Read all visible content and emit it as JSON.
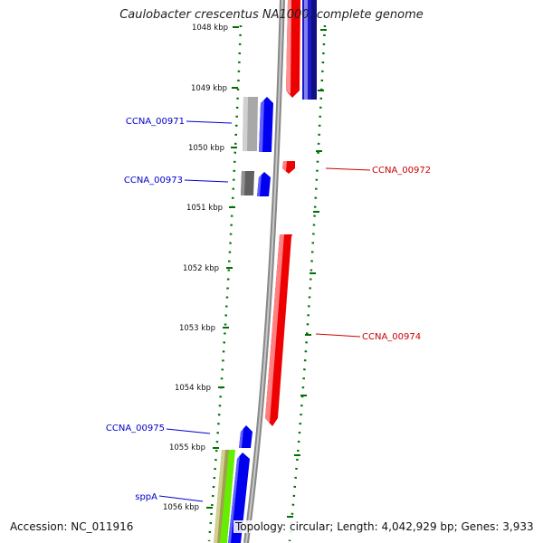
{
  "title": "Caulobacter crescentus NA1000, complete genome",
  "accession": "Accession: NC_011916",
  "summary": "Topology: circular; Length: 4,042,929 bp; Genes: 3,933",
  "colors": {
    "forward_gene": "#0000ee",
    "reverse_gene": "#ee0000",
    "gray_feature": "#a8a8a8",
    "dark_feature": "#606060",
    "olive_feature": "#a0a050",
    "green_feature": "#66ee00",
    "track_line": "#888888",
    "tick": "#007000"
  },
  "scale_labels": [
    "1048 kbp",
    "1049 kbp",
    "1050 kbp",
    "1051 kbp",
    "1052 kbp",
    "1053 kbp",
    "1054 kbp",
    "1055 kbp",
    "1056 kbp"
  ],
  "genes": [
    {
      "name": "CCNA_00971",
      "strand": "forward"
    },
    {
      "name": "CCNA_00972",
      "strand": "reverse"
    },
    {
      "name": "CCNA_00973",
      "strand": "forward"
    },
    {
      "name": "CCNA_00974",
      "strand": "reverse"
    },
    {
      "name": "CCNA_00975",
      "strand": "forward"
    },
    {
      "name": "sppA",
      "strand": "forward"
    }
  ]
}
